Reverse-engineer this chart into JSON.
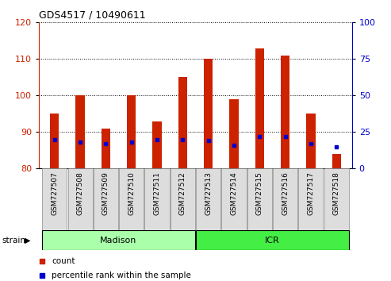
{
  "title": "GDS4517 / 10490611",
  "samples": [
    "GSM727507",
    "GSM727508",
    "GSM727509",
    "GSM727510",
    "GSM727511",
    "GSM727512",
    "GSM727513",
    "GSM727514",
    "GSM727515",
    "GSM727516",
    "GSM727517",
    "GSM727518"
  ],
  "count_values": [
    95,
    100,
    91,
    100,
    93,
    105,
    110,
    99,
    113,
    111,
    95,
    84
  ],
  "percentile_values": [
    20,
    18,
    17,
    18,
    20,
    20,
    19,
    16,
    22,
    22,
    17,
    15
  ],
  "ylim_left": [
    80,
    120
  ],
  "ylim_right": [
    0,
    100
  ],
  "yticks_left": [
    80,
    90,
    100,
    110,
    120
  ],
  "yticks_right": [
    0,
    25,
    50,
    75,
    100
  ],
  "bar_color": "#cc2200",
  "marker_color": "#0000cc",
  "madison_group": [
    0,
    1,
    2,
    3,
    4,
    5
  ],
  "icr_group": [
    6,
    7,
    8,
    9,
    10,
    11
  ],
  "madison_color": "#aaffaa",
  "icr_color": "#44ee44",
  "group_label_madison": "Madison",
  "group_label_icr": "ICR",
  "strain_label": "strain",
  "legend_count": "count",
  "legend_pct": "percentile rank within the sample",
  "title_fontsize": 9,
  "axis_left_color": "#cc2200",
  "axis_right_color": "#0000cc",
  "bar_width": 0.35
}
